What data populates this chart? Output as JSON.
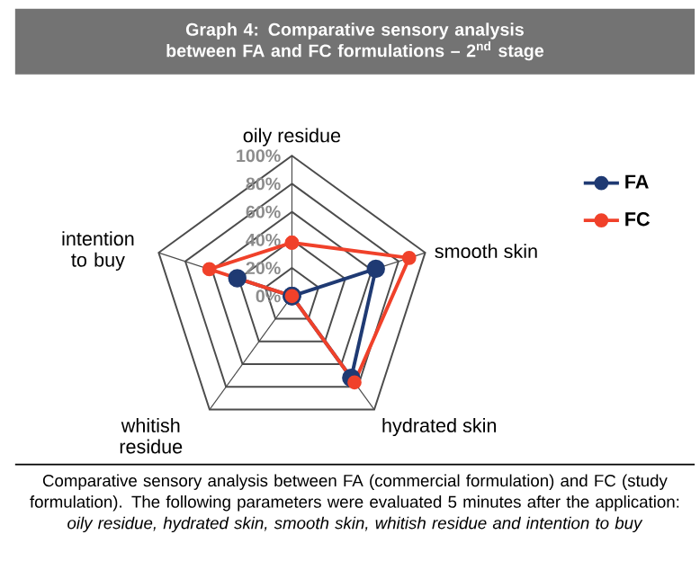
{
  "chart_data": {
    "type": "radar",
    "title": "Graph 4: Comparative sensory analysis between FA and FC formulations – 2$^{nd}$ stage",
    "categories": [
      "oily residue",
      "smooth skin",
      "hydrated skin",
      "whitish residue",
      "intention to buy"
    ],
    "series": [
      {
        "name": "FA",
        "color": "#1f3a73",
        "values": [
          0,
          63,
          72,
          0,
          41
        ]
      },
      {
        "name": "FC",
        "color": "#f0412a",
        "values": [
          38,
          88,
          76,
          0,
          62
        ]
      }
    ],
    "ylim": [
      0,
      100
    ],
    "yticks": [
      {
        "value": 0,
        "label": "0%"
      },
      {
        "value": 20,
        "label": "20%"
      },
      {
        "value": 40,
        "label": "40%"
      },
      {
        "value": 60,
        "label": "60%"
      },
      {
        "value": 80,
        "label": "80%"
      },
      {
        "value": 100,
        "label": "100%"
      }
    ],
    "grid": true,
    "legend": "right",
    "marker": "circle",
    "annotations": [
      "Comparative sensory analysis between FA (commercial formulation) and FC (study formulation). The following parameters were evaluated 5 minutes after the application: *oily residue, hydrated skin, smooth skin, whitish residue and intention to buy*"
    ]
  }
}
